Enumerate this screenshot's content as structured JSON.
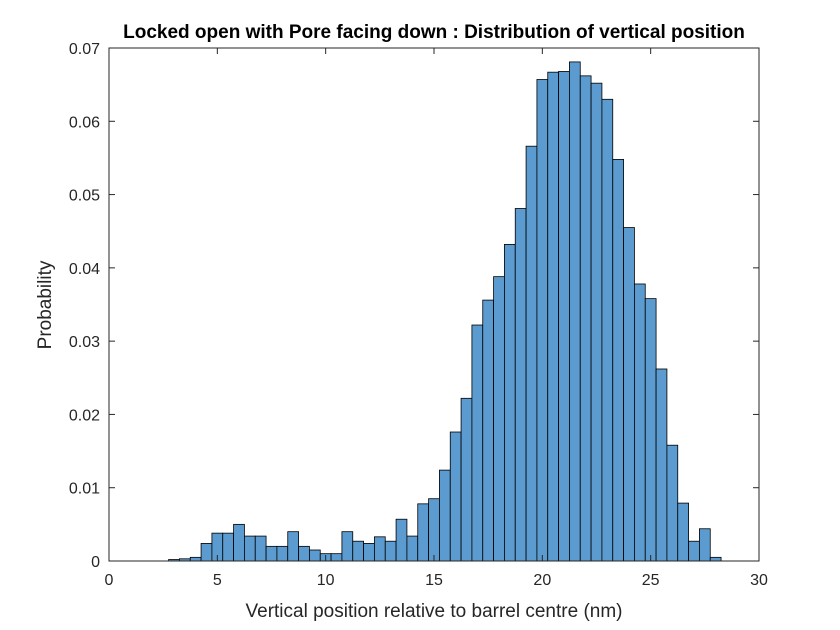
{
  "chart_data": {
    "type": "bar",
    "title": "Locked open with Pore facing down : Distribution of vertical position",
    "xlabel": "Vertical position relative to barrel centre (nm)",
    "ylabel": "Probability",
    "xlim": [
      0,
      30
    ],
    "ylim": [
      0,
      0.07
    ],
    "xticks": [
      "0",
      "5",
      "10",
      "15",
      "20",
      "25",
      "30"
    ],
    "yticks": [
      "0",
      "0.01",
      "0.02",
      "0.03",
      "0.04",
      "0.05",
      "0.06",
      "0.07"
    ],
    "bin_width": 0.5,
    "bin_start": 2.75,
    "values": [
      0.0002,
      0.0003,
      0.0005,
      0.0024,
      0.0038,
      0.0038,
      0.005,
      0.0034,
      0.0034,
      0.002,
      0.002,
      0.004,
      0.002,
      0.0015,
      0.001,
      0.001,
      0.004,
      0.0027,
      0.0024,
      0.0033,
      0.0027,
      0.0057,
      0.0034,
      0.0078,
      0.0085,
      0.0124,
      0.0176,
      0.0222,
      0.0322,
      0.0356,
      0.0388,
      0.0432,
      0.0481,
      0.0566,
      0.0657,
      0.0667,
      0.0668,
      0.0681,
      0.0662,
      0.0652,
      0.063,
      0.0548,
      0.0455,
      0.0378,
      0.0358,
      0.0262,
      0.0158,
      0.0079,
      0.0027,
      0.0044,
      0.0005
    ],
    "bar_color": "#5B9BD0",
    "edge_color": "#000000",
    "grid": false
  }
}
